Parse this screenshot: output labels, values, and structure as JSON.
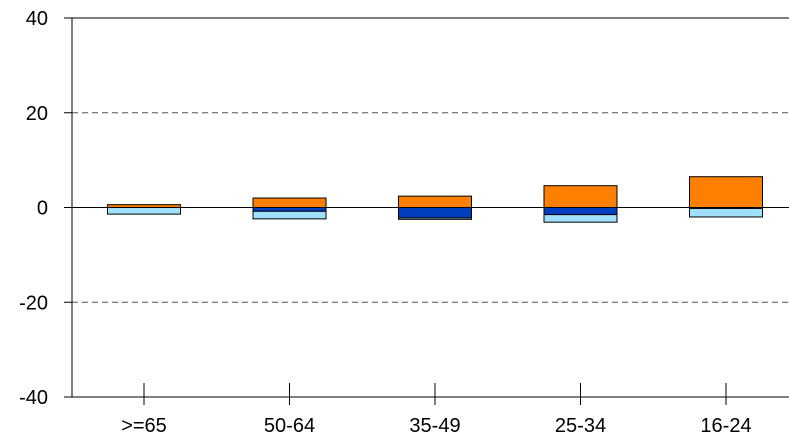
{
  "chart_data": {
    "type": "bar",
    "stacked": true,
    "categories": [
      ">=65",
      "50-64",
      "35-49",
      "25-34",
      "16-24"
    ],
    "series": [
      {
        "color": "#ff8000",
        "values": [
          0.6,
          2.0,
          2.4,
          4.6,
          6.5
        ]
      },
      {
        "color": "#0040c0",
        "values": [
          0.0,
          -0.8,
          -2.2,
          -1.5,
          -0.2
        ]
      },
      {
        "color": "#a0e0ff",
        "values": [
          -1.4,
          -1.6,
          -0.3,
          -1.6,
          -1.8
        ]
      }
    ],
    "ylim": [
      -40,
      40
    ],
    "yticks": [
      "40",
      "20",
      "0",
      "-20",
      "-40"
    ],
    "ytick_values": [
      40,
      20,
      0,
      -20,
      -40
    ],
    "gridlines": {
      "values": [
        20,
        -20
      ],
      "style": "dashed"
    },
    "xlabel": "",
    "ylabel": "",
    "title": ""
  }
}
